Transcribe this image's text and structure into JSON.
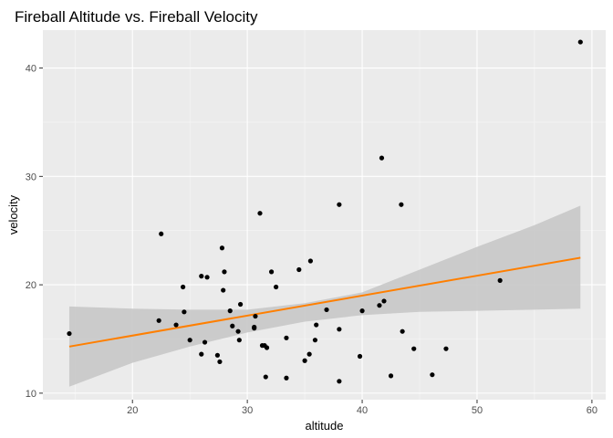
{
  "chart_data": {
    "type": "scatter",
    "title": "Fireball Altitude vs. Fireball Velocity",
    "xlabel": "altitude",
    "ylabel": "velocity",
    "xlim": [
      12.2,
      61.2
    ],
    "ylim": [
      9.4,
      43.5
    ],
    "x_ticks": [
      20,
      30,
      40,
      50,
      60
    ],
    "y_ticks": [
      10,
      20,
      30,
      40
    ],
    "grid": true,
    "colors": {
      "panel": "#ebebeb",
      "grid_major": "#ffffff",
      "points": "#000000",
      "trend_line": "#ff7f00",
      "confidence_band": "#c8c8c8"
    },
    "points": [
      {
        "x": 14.5,
        "y": 15.5
      },
      {
        "x": 22.3,
        "y": 16.7
      },
      {
        "x": 22.5,
        "y": 24.7
      },
      {
        "x": 23.8,
        "y": 16.3
      },
      {
        "x": 24.4,
        "y": 19.8
      },
      {
        "x": 24.5,
        "y": 17.5
      },
      {
        "x": 25.0,
        "y": 14.9
      },
      {
        "x": 26.0,
        "y": 13.6
      },
      {
        "x": 26.0,
        "y": 20.8
      },
      {
        "x": 26.3,
        "y": 14.7
      },
      {
        "x": 26.5,
        "y": 20.7
      },
      {
        "x": 27.4,
        "y": 13.5
      },
      {
        "x": 27.6,
        "y": 12.9
      },
      {
        "x": 27.8,
        "y": 23.4
      },
      {
        "x": 27.9,
        "y": 19.5
      },
      {
        "x": 28.0,
        "y": 21.2
      },
      {
        "x": 28.5,
        "y": 17.6
      },
      {
        "x": 28.7,
        "y": 16.2
      },
      {
        "x": 29.2,
        "y": 15.7
      },
      {
        "x": 29.3,
        "y": 14.9
      },
      {
        "x": 29.4,
        "y": 18.2
      },
      {
        "x": 30.6,
        "y": 16.0
      },
      {
        "x": 30.6,
        "y": 16.1
      },
      {
        "x": 30.7,
        "y": 17.1
      },
      {
        "x": 31.1,
        "y": 26.6
      },
      {
        "x": 31.3,
        "y": 14.4
      },
      {
        "x": 31.5,
        "y": 14.4
      },
      {
        "x": 31.6,
        "y": 11.5
      },
      {
        "x": 31.7,
        "y": 14.2
      },
      {
        "x": 32.1,
        "y": 21.2
      },
      {
        "x": 32.5,
        "y": 19.8
      },
      {
        "x": 33.4,
        "y": 11.4
      },
      {
        "x": 33.4,
        "y": 15.1
      },
      {
        "x": 34.5,
        "y": 21.4
      },
      {
        "x": 35.0,
        "y": 13.0
      },
      {
        "x": 35.4,
        "y": 13.6
      },
      {
        "x": 35.5,
        "y": 22.2
      },
      {
        "x": 35.9,
        "y": 14.9
      },
      {
        "x": 36.0,
        "y": 16.3
      },
      {
        "x": 36.9,
        "y": 17.7
      },
      {
        "x": 38.0,
        "y": 27.4
      },
      {
        "x": 38.0,
        "y": 15.9
      },
      {
        "x": 38.0,
        "y": 11.1
      },
      {
        "x": 39.8,
        "y": 13.4
      },
      {
        "x": 40.0,
        "y": 17.6
      },
      {
        "x": 41.5,
        "y": 18.1
      },
      {
        "x": 41.7,
        "y": 31.7
      },
      {
        "x": 41.9,
        "y": 18.5
      },
      {
        "x": 42.5,
        "y": 11.6
      },
      {
        "x": 43.4,
        "y": 27.4
      },
      {
        "x": 43.5,
        "y": 15.7
      },
      {
        "x": 44.5,
        "y": 14.1
      },
      {
        "x": 46.1,
        "y": 11.7
      },
      {
        "x": 47.3,
        "y": 14.1
      },
      {
        "x": 52.0,
        "y": 20.4
      },
      {
        "x": 59.0,
        "y": 42.4
      }
    ],
    "trend": {
      "method": "linear",
      "x": [
        14.5,
        59.0
      ],
      "y": [
        14.3,
        22.5
      ]
    },
    "confidence_band": {
      "x": [
        14.5,
        20,
        25,
        30,
        35,
        40,
        45,
        50,
        55,
        59
      ],
      "lower": [
        10.6,
        12.8,
        14.3,
        15.6,
        16.6,
        17.2,
        17.5,
        17.6,
        17.7,
        17.8
      ],
      "upper": [
        18.0,
        17.8,
        17.7,
        17.7,
        18.3,
        19.3,
        21.4,
        23.5,
        25.5,
        27.3
      ]
    }
  }
}
